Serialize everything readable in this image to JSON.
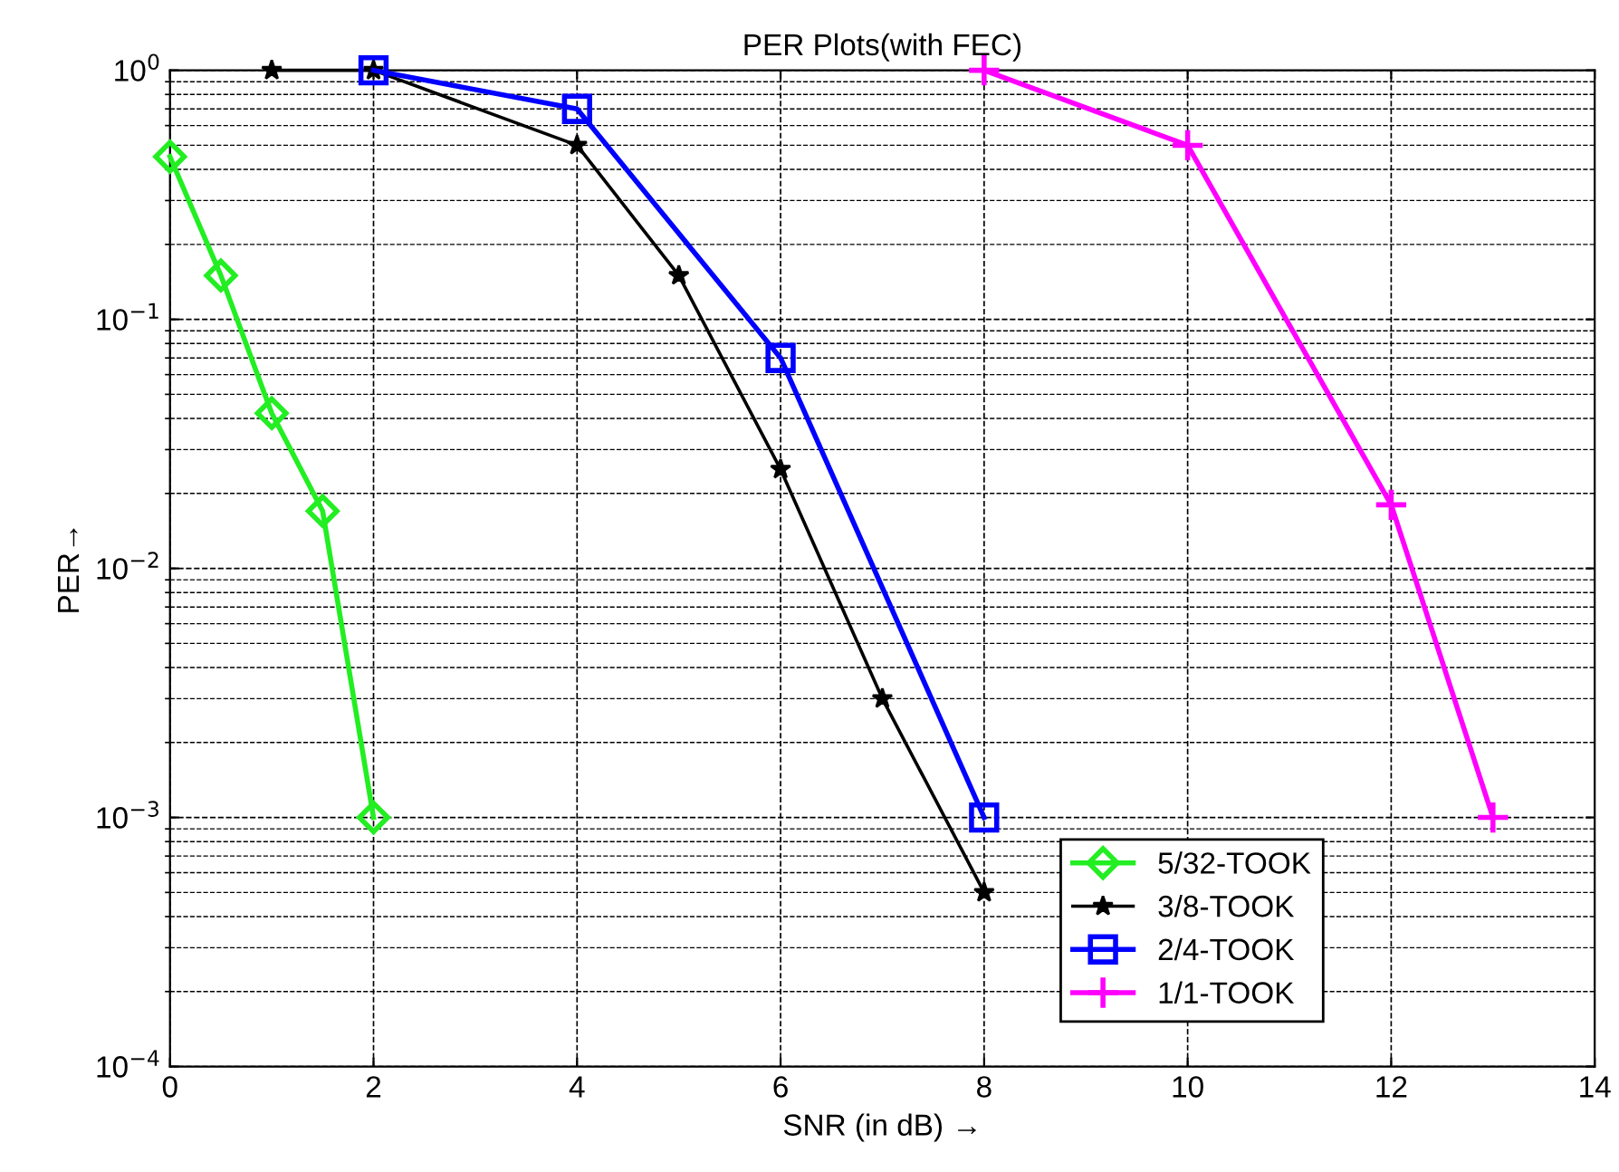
{
  "chart_data": {
    "type": "line",
    "title": "PER Plots(with FEC)",
    "xlabel": "SNR (in dB) →",
    "ylabel": "PER→",
    "log": "y",
    "xlim": [
      0,
      14
    ],
    "xticks": [
      0,
      2,
      4,
      6,
      8,
      10,
      12,
      14
    ],
    "ylim": [
      0.0001,
      1
    ],
    "yticks": [
      {
        "value": 0.0001,
        "label": "10$^{−4}$"
      },
      {
        "value": 0.001,
        "label": "10$^{−3}$"
      },
      {
        "value": 0.01,
        "label": "10$^{−2}$"
      },
      {
        "value": 0.1,
        "label": "10$^{−1}$"
      },
      {
        "value": 1,
        "label": "10$^{0}$"
      }
    ],
    "grid": true,
    "legend": "bottom right",
    "series": [
      {
        "name": "5/32-TOOK",
        "color": "#22ee22",
        "marker": "diamond",
        "x": [
          0,
          0.5,
          1,
          1.5,
          2
        ],
        "values": [
          0.45,
          0.15,
          0.042,
          0.017,
          0.001
        ]
      },
      {
        "name": "3/8-TOOK",
        "color": "#000000",
        "marker": "star",
        "x": [
          1,
          2,
          4,
          5,
          6,
          7,
          8
        ],
        "values": [
          1,
          1,
          0.5,
          0.15,
          0.025,
          0.003,
          0.0005
        ]
      },
      {
        "name": "2/4-TOOK",
        "color": "#0000ff",
        "marker": "square",
        "x": [
          2,
          4,
          6,
          8
        ],
        "values": [
          1,
          0.7,
          0.07,
          0.001
        ]
      },
      {
        "name": "1/1-TOOK",
        "color": "#ff00ff",
        "marker": "cross",
        "x": [
          8,
          10,
          12,
          13
        ],
        "values": [
          1,
          0.5,
          0.018,
          0.001
        ]
      }
    ]
  }
}
